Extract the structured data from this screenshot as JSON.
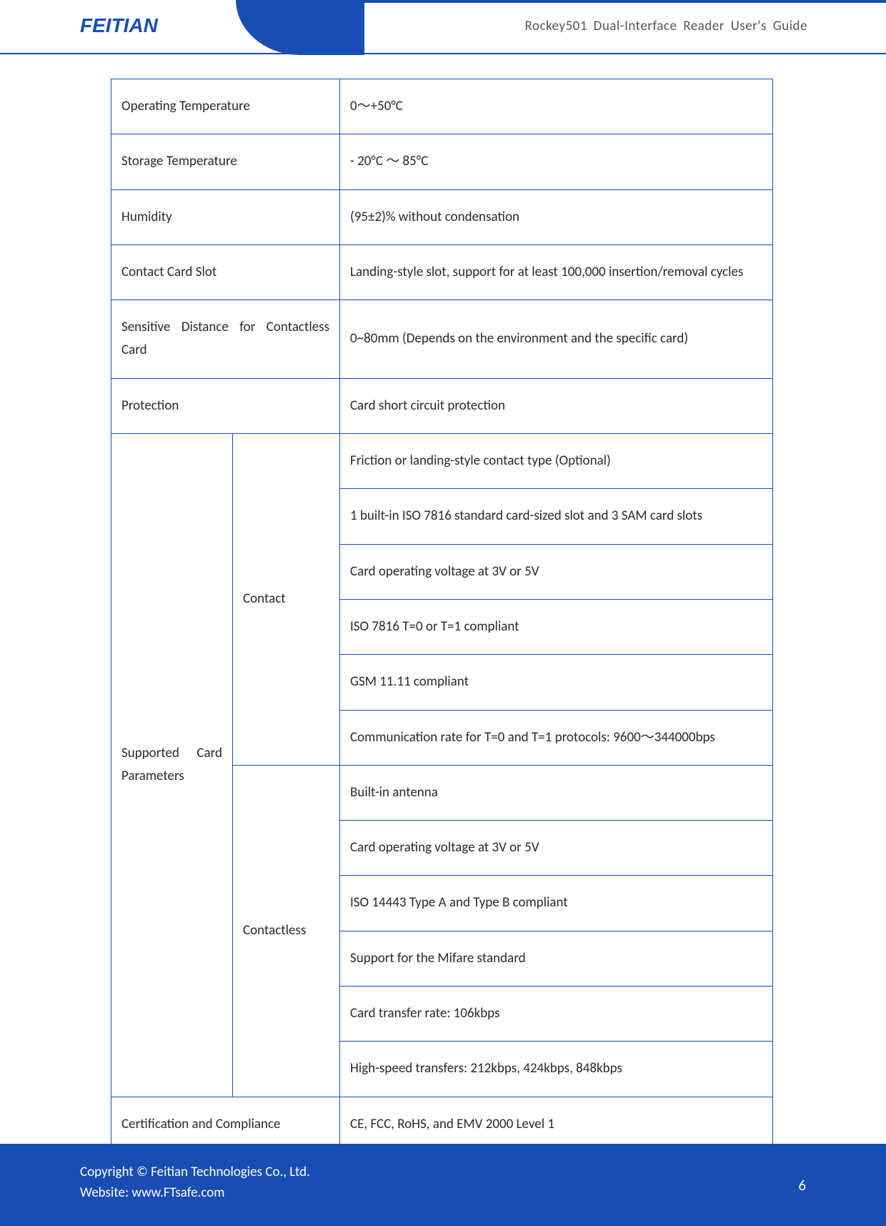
{
  "header": {
    "logo_text": "FEITIAN",
    "doc_title": "Rockey501  Dual-Interface  Reader  User's  Guide"
  },
  "table": {
    "rows_top": [
      {
        "label": "Operating Temperature",
        "value": "0～+50°C"
      },
      {
        "label": "Storage Temperature",
        "value": "- 20°C  ～  85°C"
      },
      {
        "label": "Humidity",
        "value": "(95±2)% without condensation"
      },
      {
        "label": "Contact Card Slot",
        "value": "Landing-style slot, support for at least 100,000 insertion/removal cycles",
        "value_justify": true
      },
      {
        "label": "Sensitive Distance for Contactless Card",
        "label_justify": true,
        "value": "0~80mm (Depends on the environment and the specific card)"
      },
      {
        "label": "Protection",
        "value": "Card short circuit protection"
      }
    ],
    "supported_label": "Supported Card Parameters",
    "contact_label": "Contact",
    "contactless_label": "Contactless",
    "contact_rows": [
      "Friction or landing-style contact type (Optional)",
      "1 built-in ISO 7816 standard card-sized slot and 3 SAM card slots",
      "Card operating voltage at 3V or 5V",
      "ISO 7816 T=0 or T=1 compliant",
      "GSM 11.11 compliant",
      "Communication rate for T=0 and T=1 protocols: 9600～344000bps"
    ],
    "contactless_rows": [
      "Built-in antenna",
      "Card operating voltage at 3V or 5V",
      "ISO 14443 Type A and Type B compliant",
      "Support for the Mifare standard",
      "Card transfer rate: 106kbps",
      "High-speed transfers: 212kbps, 424kbps, 848kbps"
    ],
    "cert_label": "Certification and Compliance",
    "cert_value": "CE, FCC, RoHS, and EMV 2000 Level 1"
  },
  "footer": {
    "line1": "Copyright © Feitian Technologies Co., Ltd.",
    "line2": "Website: www.FTsafe.com",
    "page_number": "6"
  },
  "colors": {
    "brand_blue": "#1a4db3",
    "text": "#2a2a2a",
    "white": "#ffffff"
  }
}
